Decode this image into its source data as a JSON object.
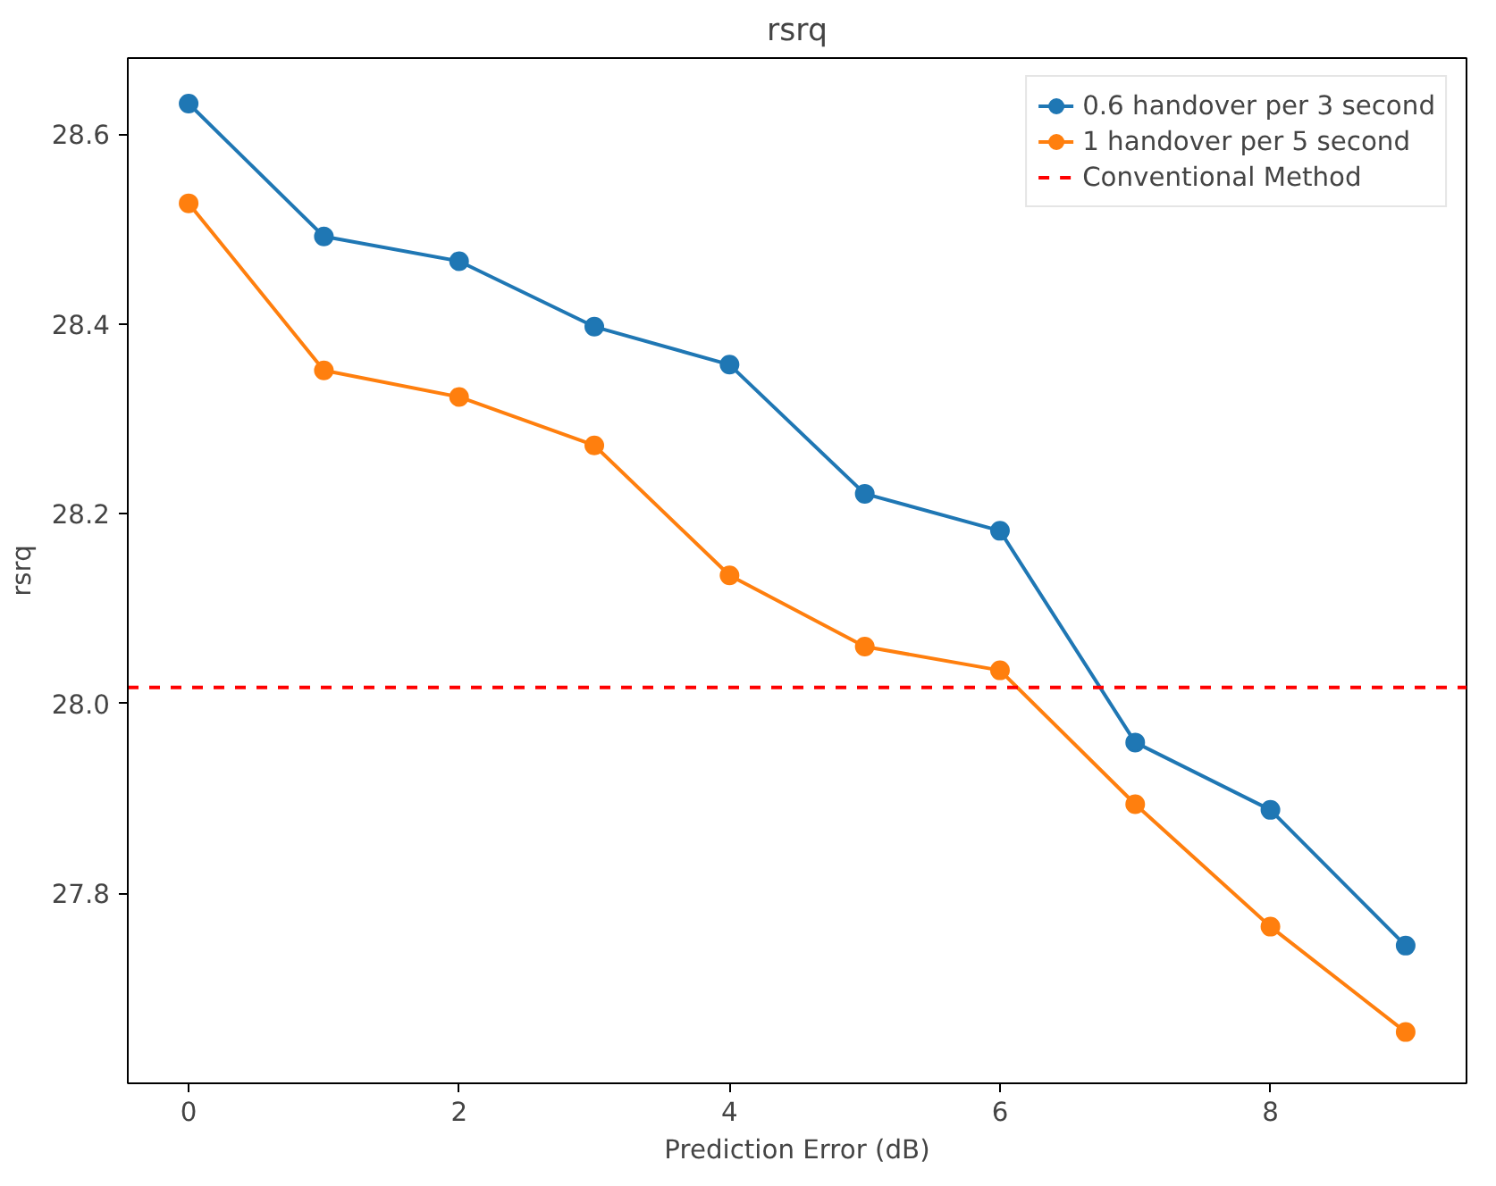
{
  "chart_data": {
    "type": "line",
    "title": "rsrq",
    "xlabel": "Prediction Error (dB)",
    "ylabel": "rsrq",
    "x": [
      0,
      1,
      2,
      3,
      4,
      5,
      6,
      7,
      8,
      9
    ],
    "series": [
      {
        "name": "0.6 handover per 3 second",
        "color": "#1f77b4",
        "values": [
          28.632,
          28.492,
          28.466,
          28.397,
          28.357,
          28.221,
          28.182,
          27.959,
          27.888,
          27.745
        ]
      },
      {
        "name": "1 handover per 5 second",
        "color": "#ff7f0e",
        "values": [
          28.527,
          28.351,
          28.323,
          28.272,
          28.135,
          28.06,
          28.035,
          27.894,
          27.765,
          27.654
        ]
      }
    ],
    "ref_lines": [
      {
        "axis": "y",
        "value": 28.017,
        "label": "Conventional Method",
        "color": "#ff0000",
        "line_style": "dashed"
      }
    ],
    "xlim": [
      -0.45,
      9.45
    ],
    "ylim": [
      27.6,
      28.68
    ],
    "xticks": [
      0,
      2,
      4,
      6,
      8
    ],
    "yticks": [
      {
        "value": 27.8,
        "label": "27.8"
      },
      {
        "value": 28.0,
        "label": "28.0"
      },
      {
        "value": 28.2,
        "label": "28.2"
      },
      {
        "value": 28.4,
        "label": "28.4"
      },
      {
        "value": 28.6,
        "label": "28.6"
      }
    ],
    "marker": "circle",
    "line_style": "solid",
    "legend": "top right",
    "grid": false
  }
}
